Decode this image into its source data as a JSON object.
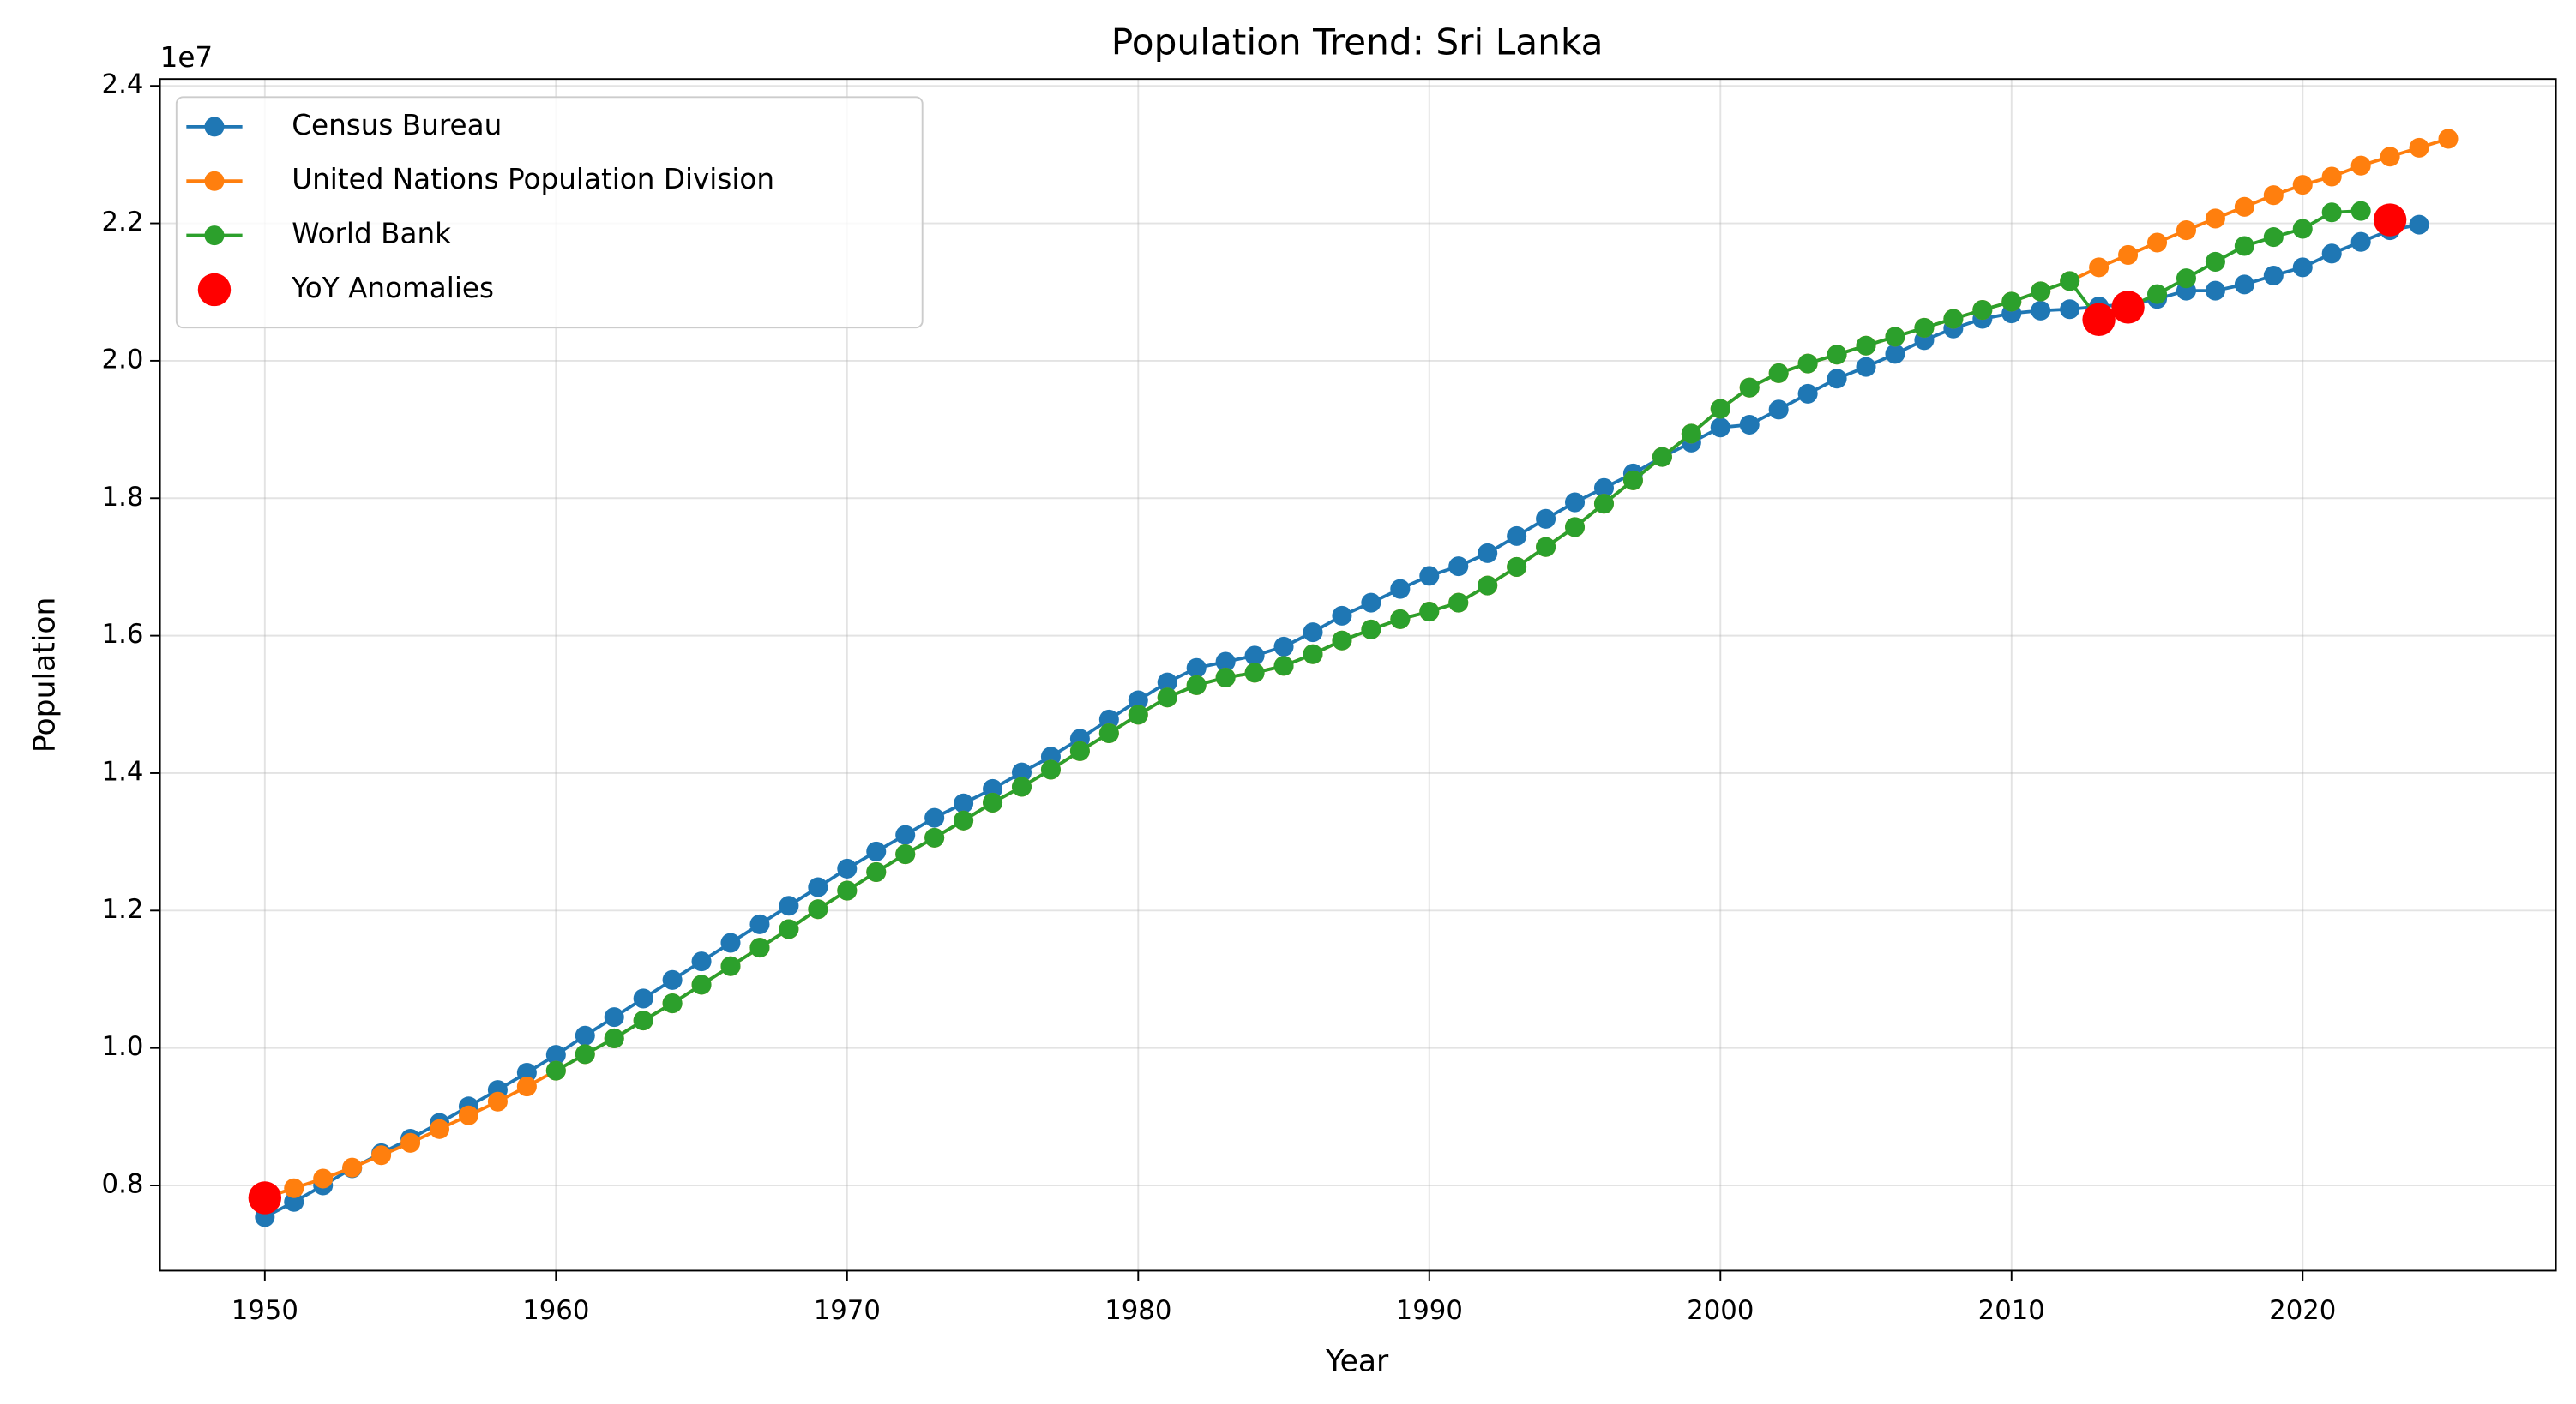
{
  "chart_data": {
    "type": "line",
    "title": "Population Trend: Sri Lanka",
    "xlabel": "Year",
    "ylabel": "Population",
    "y_offset_label": "1e7",
    "xlim": [
      1946.4,
      2028.7
    ],
    "ylim": [
      6760000,
      24100000
    ],
    "xticks": [
      1950,
      1960,
      1970,
      1980,
      1990,
      2000,
      2010,
      2020
    ],
    "yticks": [
      {
        "value": 8000000,
        "label": "0.8"
      },
      {
        "value": 10000000,
        "label": "1.0"
      },
      {
        "value": 12000000,
        "label": "1.2"
      },
      {
        "value": 14000000,
        "label": "1.4"
      },
      {
        "value": 16000000,
        "label": "1.6"
      },
      {
        "value": 18000000,
        "label": "1.8"
      },
      {
        "value": 20000000,
        "label": "2.0"
      },
      {
        "value": 22000000,
        "label": "2.2"
      },
      {
        "value": 24000000,
        "label": "2.4"
      }
    ],
    "grid": true,
    "legend": "upper left",
    "series": [
      {
        "name": "Census Bureau",
        "color": "#1f77b4",
        "x": [
          1950,
          1951,
          1952,
          1953,
          1954,
          1955,
          1956,
          1957,
          1958,
          1959,
          1960,
          1961,
          1962,
          1963,
          1964,
          1965,
          1966,
          1967,
          1968,
          1969,
          1970,
          1971,
          1972,
          1973,
          1974,
          1975,
          1976,
          1977,
          1978,
          1979,
          1980,
          1981,
          1982,
          1983,
          1984,
          1985,
          1986,
          1987,
          1988,
          1989,
          1990,
          1991,
          1992,
          1993,
          1994,
          1995,
          1996,
          1997,
          1998,
          1999,
          2000,
          2001,
          2002,
          2003,
          2004,
          2005,
          2006,
          2007,
          2008,
          2009,
          2010,
          2011,
          2012,
          2013,
          2014,
          2015,
          2016,
          2017,
          2018,
          2019,
          2020,
          2021,
          2022,
          2023,
          2024
        ],
        "values": [
          7540000,
          7760000,
          8000000,
          8250000,
          8470000,
          8680000,
          8910000,
          9150000,
          9390000,
          9640000,
          9900000,
          10180000,
          10450000,
          10720000,
          10990000,
          11260000,
          11530000,
          11800000,
          12070000,
          12340000,
          12610000,
          12860000,
          13100000,
          13350000,
          13560000,
          13770000,
          14010000,
          14240000,
          14500000,
          14780000,
          15060000,
          15320000,
          15530000,
          15620000,
          15710000,
          15840000,
          16050000,
          16290000,
          16480000,
          16680000,
          16870000,
          17010000,
          17200000,
          17450000,
          17700000,
          17940000,
          18150000,
          18360000,
          18600000,
          18810000,
          19030000,
          19070000,
          19290000,
          19520000,
          19740000,
          19910000,
          20100000,
          20300000,
          20470000,
          20610000,
          20690000,
          20730000,
          20750000,
          20790000,
          20820000,
          20900000,
          21020000,
          21020000,
          21110000,
          21240000,
          21360000,
          21560000,
          21730000,
          21900000,
          21980000
        ]
      },
      {
        "name": "United Nations Population Division",
        "color": "#ff7f0e",
        "x": [
          1950,
          1951,
          1952,
          1953,
          1954,
          1955,
          1956,
          1957,
          1958,
          1959,
          1960,
          1961,
          1962,
          1963,
          1964,
          1965,
          1966,
          1967,
          1968,
          1969,
          1970,
          1971,
          1972,
          1973,
          1974,
          1975,
          1976,
          1977,
          1978,
          1979,
          1980,
          1981,
          1982,
          1983,
          1984,
          1985,
          1986,
          1987,
          1988,
          1989,
          1990,
          1991,
          1992,
          1993,
          1994,
          1995,
          1996,
          1997,
          1998,
          1999,
          2000,
          2001,
          2002,
          2003,
          2004,
          2005,
          2006,
          2007,
          2008,
          2009,
          2010,
          2011,
          2012,
          2013,
          2014,
          2015,
          2016,
          2017,
          2018,
          2019,
          2020,
          2021,
          2022,
          2023,
          2024,
          2025
        ],
        "values": [
          7820000,
          7960000,
          8100000,
          8260000,
          8440000,
          8620000,
          8820000,
          9020000,
          9220000,
          9440000,
          9670000,
          9910000,
          10140000,
          10400000,
          10650000,
          10920000,
          11190000,
          11460000,
          11730000,
          12020000,
          12290000,
          12560000,
          12820000,
          13060000,
          13310000,
          13570000,
          13800000,
          14050000,
          14320000,
          14580000,
          14850000,
          15100000,
          15280000,
          15390000,
          15460000,
          15560000,
          15730000,
          15930000,
          16090000,
          16240000,
          16350000,
          16480000,
          16730000,
          17000000,
          17290000,
          17580000,
          17920000,
          18260000,
          18600000,
          18940000,
          19300000,
          19610000,
          19820000,
          19960000,
          20090000,
          20220000,
          20350000,
          20480000,
          20610000,
          20740000,
          20860000,
          21010000,
          21160000,
          21360000,
          21540000,
          21720000,
          21900000,
          22070000,
          22240000,
          22410000,
          22560000,
          22680000,
          22840000,
          22970000,
          23100000,
          23230000
        ]
      },
      {
        "name": "World Bank",
        "color": "#2ca02c",
        "x": [
          1960,
          1961,
          1962,
          1963,
          1964,
          1965,
          1966,
          1967,
          1968,
          1969,
          1970,
          1971,
          1972,
          1973,
          1974,
          1975,
          1976,
          1977,
          1978,
          1979,
          1980,
          1981,
          1982,
          1983,
          1984,
          1985,
          1986,
          1987,
          1988,
          1989,
          1990,
          1991,
          1992,
          1993,
          1994,
          1995,
          1996,
          1997,
          1998,
          1999,
          2000,
          2001,
          2002,
          2003,
          2004,
          2005,
          2006,
          2007,
          2008,
          2009,
          2010,
          2011,
          2012,
          2013,
          2014,
          2015,
          2016,
          2017,
          2018,
          2019,
          2020,
          2021,
          2022
        ],
        "values": [
          9670000,
          9910000,
          10140000,
          10400000,
          10650000,
          10920000,
          11190000,
          11460000,
          11730000,
          12020000,
          12290000,
          12560000,
          12820000,
          13060000,
          13310000,
          13570000,
          13800000,
          14050000,
          14320000,
          14580000,
          14850000,
          15100000,
          15280000,
          15390000,
          15460000,
          15560000,
          15730000,
          15930000,
          16090000,
          16240000,
          16350000,
          16480000,
          16730000,
          17000000,
          17290000,
          17580000,
          17920000,
          18260000,
          18600000,
          18940000,
          19300000,
          19610000,
          19820000,
          19960000,
          20090000,
          20220000,
          20350000,
          20480000,
          20610000,
          20740000,
          20860000,
          21010000,
          21160000,
          20600000,
          20780000,
          20970000,
          21200000,
          21440000,
          21670000,
          21800000,
          21920000,
          22160000,
          22180000
        ]
      },
      {
        "name": "YoY Anomalies",
        "color": "#ff0000",
        "type": "scatter",
        "x": [
          1950,
          2013,
          2014,
          2023
        ],
        "values": [
          7820000,
          20600000,
          20780000,
          22050000
        ]
      }
    ]
  }
}
